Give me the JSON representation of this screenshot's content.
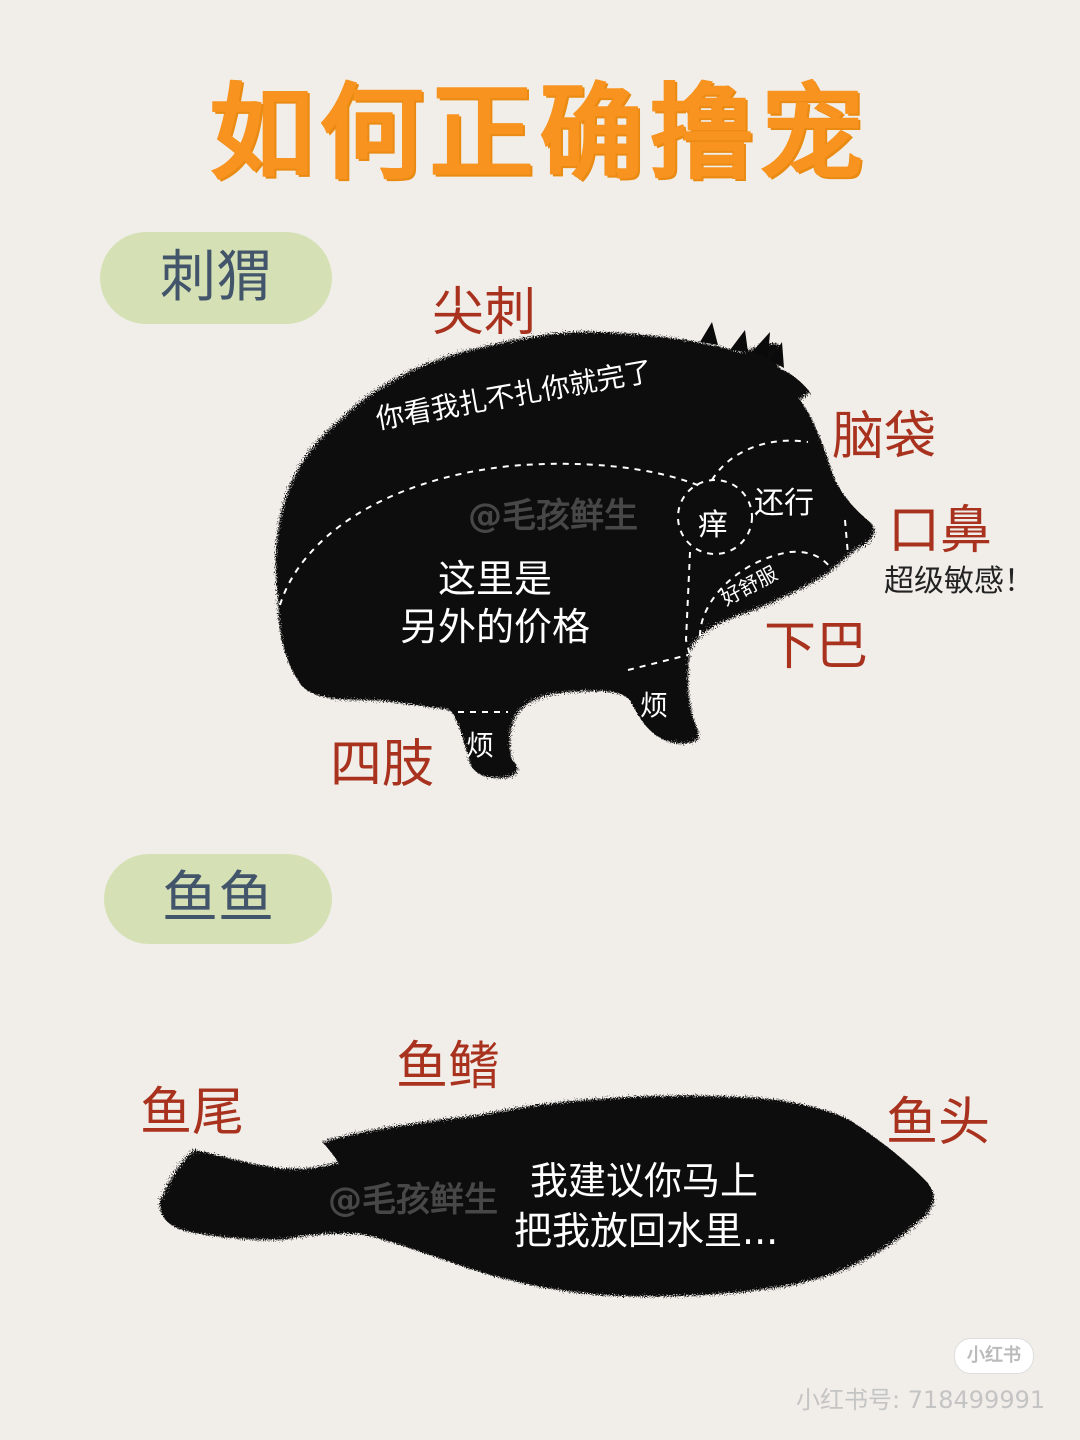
{
  "title": "如何正确撸宠",
  "hedgehog": {
    "section_label": "刺猬",
    "labels": {
      "spikes": "尖刺",
      "head": "脑袋",
      "mouth_nose": "口鼻",
      "mouth_nose_note": "超级敏感！",
      "chin": "下巴",
      "limbs": "四肢"
    },
    "zones": {
      "back": "你看我扎不扎你就完了",
      "body_line1": "这里是",
      "body_line2": "另外的价格",
      "itchy": "痒",
      "head_ok": "还行",
      "chin_comfy": "好舒服",
      "front_leg": "烦",
      "back_leg": "烦"
    },
    "watermark": "@毛孩鲜生"
  },
  "fish": {
    "section_label": "鱼鱼",
    "labels": {
      "tail": "鱼尾",
      "fin": "鱼鳍",
      "head": "鱼头"
    },
    "body_line1": "我建议你马上",
    "body_line2": "把我放回水里...",
    "watermark": "@毛孩鲜生"
  },
  "footer": {
    "badge": "小红书",
    "id_text": "小红书号: 718499991"
  },
  "colors": {
    "background": "#f1eeea",
    "title": "#f7931e",
    "pill": "#d5e1b5",
    "pill_text": "#43556a",
    "label_red": "#a8321e",
    "silhouette": "#0a0a0a"
  }
}
